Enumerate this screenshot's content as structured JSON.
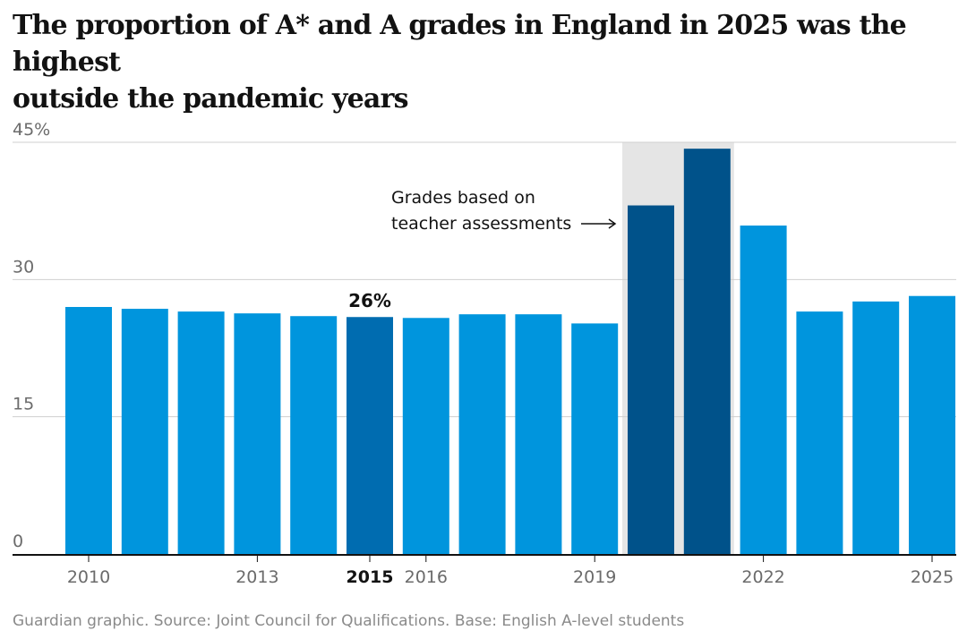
{
  "title_lines": [
    "The proportion of A* and A grades in England in 2025 was the highest",
    "outside the pandemic years"
  ],
  "footer": "Guardian graphic. Source: Joint Council for Qualifications. Base: English A-level students",
  "colors": {
    "bar": "#0095dd",
    "bar_highlight": "#006cb0",
    "bar_pandemic": "#00528a",
    "shade": "#e5e5e5",
    "grid": "#cfcfcf",
    "axis": "#121212",
    "tick_text": "#6b6b6b",
    "label_text": "#121212"
  },
  "chart_data": {
    "type": "bar",
    "title": "The proportion of A* and A grades in England in 2025 was the highest outside the pandemic years",
    "xlabel": "",
    "ylabel": "",
    "ylim": [
      0,
      45
    ],
    "yticks": [
      {
        "value": 0,
        "label": "0"
      },
      {
        "value": 15,
        "label": "15"
      },
      {
        "value": 30,
        "label": "30"
      },
      {
        "value": 45,
        "label": "45%"
      }
    ],
    "categories": [
      "2010",
      "2011",
      "2012",
      "2013",
      "2014",
      "2015",
      "2016",
      "2017",
      "2018",
      "2019",
      "2020",
      "2021",
      "2022",
      "2023",
      "2024",
      "2025"
    ],
    "values": [
      27.0,
      26.8,
      26.5,
      26.3,
      26.0,
      25.9,
      25.8,
      26.2,
      26.2,
      25.2,
      38.1,
      44.3,
      35.9,
      26.5,
      27.6,
      28.2
    ],
    "bar_groups": [
      "normal",
      "normal",
      "normal",
      "normal",
      "normal",
      "highlight",
      "normal",
      "normal",
      "normal",
      "normal",
      "pandemic",
      "pandemic",
      "normal",
      "normal",
      "normal",
      "normal"
    ],
    "x_tick_labels": [
      {
        "index": 0,
        "label": "2010",
        "bold": false
      },
      {
        "index": 3,
        "label": "2013",
        "bold": false
      },
      {
        "index": 5,
        "label": "2015",
        "bold": true
      },
      {
        "index": 6,
        "label": "2016",
        "bold": false
      },
      {
        "index": 9,
        "label": "2019",
        "bold": false
      },
      {
        "index": 12,
        "label": "2022",
        "bold": false
      },
      {
        "index": 15,
        "label": "2025",
        "bold": false
      }
    ],
    "data_labels": [
      {
        "index": 5,
        "label": "26%"
      }
    ],
    "shaded_range": {
      "start_index": 10,
      "end_index": 11
    },
    "annotation": {
      "lines": [
        "Grades based on",
        "teacher assessments"
      ],
      "points_to_index": 10
    }
  }
}
